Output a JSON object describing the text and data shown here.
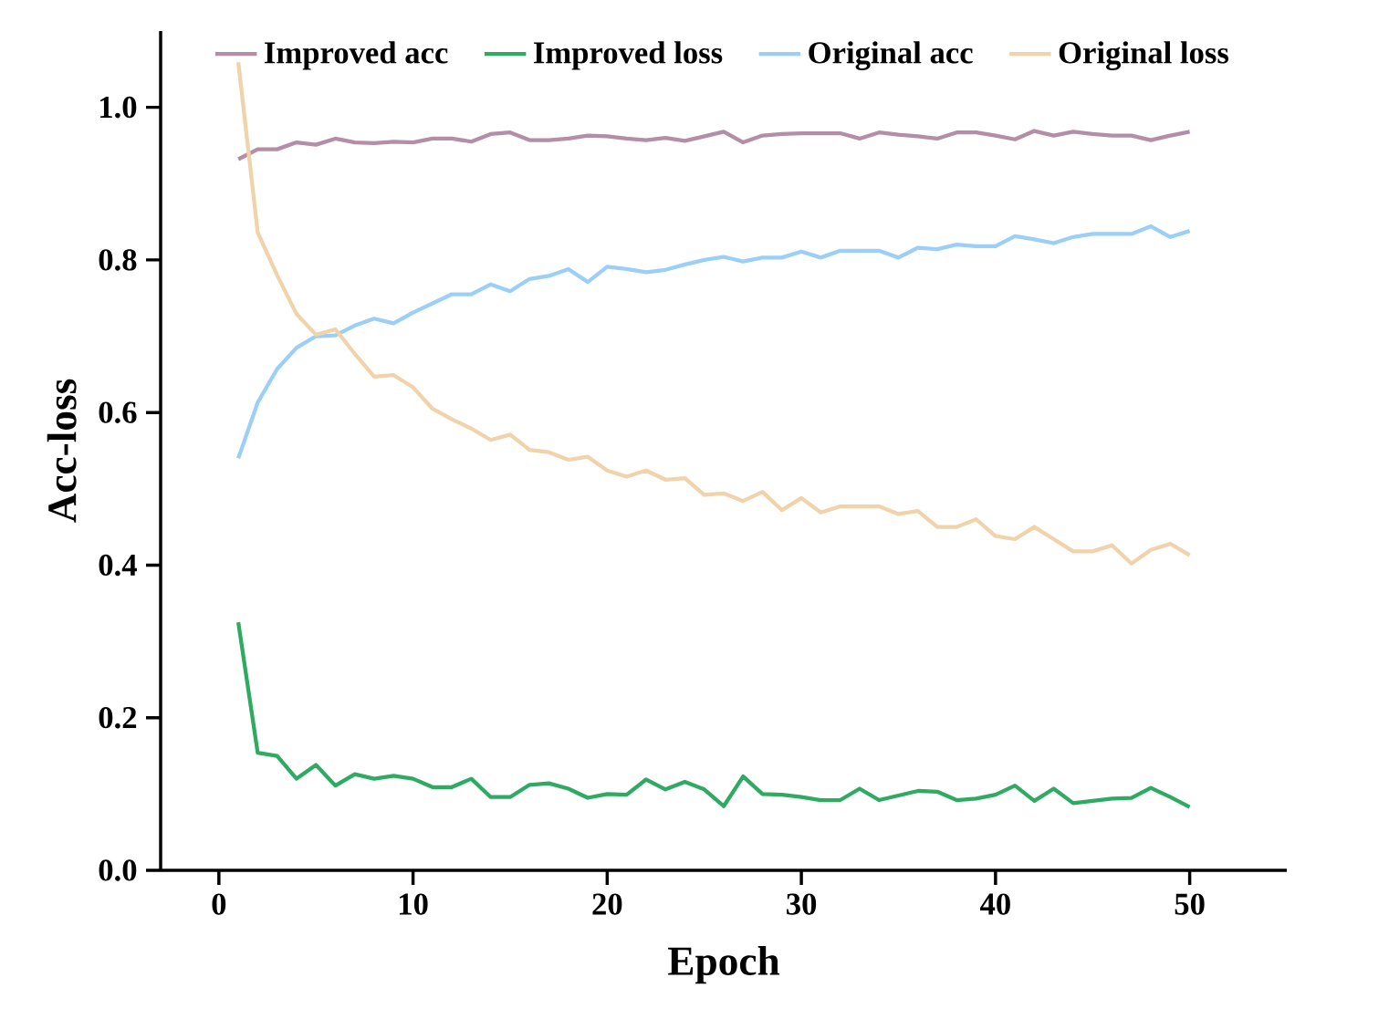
{
  "chart_data": {
    "type": "line",
    "xlabel": "Epoch",
    "ylabel": "Acc-loss",
    "legend": "top",
    "xlim": [
      -3,
      55
    ],
    "ylim": [
      0,
      1.1
    ],
    "xticks": [
      0,
      10,
      20,
      30,
      40,
      50
    ],
    "yticks": [
      {
        "value": 0,
        "label": "0.0"
      },
      {
        "value": 0.2,
        "label": "0.2"
      },
      {
        "value": 0.4,
        "label": "0.4"
      },
      {
        "value": 0.6,
        "label": "0.6"
      },
      {
        "value": 0.8,
        "label": "0.8"
      },
      {
        "value": 1.0,
        "label": "1.0"
      }
    ],
    "x": [
      1,
      2,
      3,
      4,
      5,
      6,
      7,
      8,
      9,
      10,
      11,
      12,
      13,
      14,
      15,
      16,
      17,
      18,
      19,
      20,
      21,
      22,
      23,
      24,
      25,
      26,
      27,
      28,
      29,
      30,
      31,
      32,
      33,
      34,
      35,
      36,
      37,
      38,
      39,
      40,
      41,
      42,
      43,
      44,
      45,
      46,
      47,
      48,
      49,
      50
    ],
    "series": [
      {
        "name": "Improved acc",
        "color": "#b48ea6",
        "values": [
          0.932,
          0.945,
          0.945,
          0.954,
          0.951,
          0.959,
          0.954,
          0.953,
          0.955,
          0.954,
          0.959,
          0.959,
          0.955,
          0.965,
          0.967,
          0.957,
          0.957,
          0.959,
          0.963,
          0.962,
          0.959,
          0.957,
          0.96,
          0.956,
          0.962,
          0.968,
          0.954,
          0.963,
          0.965,
          0.966,
          0.966,
          0.966,
          0.959,
          0.967,
          0.964,
          0.962,
          0.959,
          0.967,
          0.967,
          0.963,
          0.958,
          0.969,
          0.963,
          0.968,
          0.965,
          0.963,
          0.963,
          0.957,
          0.963,
          0.968
        ]
      },
      {
        "name": "Improved loss",
        "color": "#2eaa63",
        "values": [
          0.325,
          0.154,
          0.15,
          0.12,
          0.138,
          0.111,
          0.126,
          0.12,
          0.124,
          0.12,
          0.109,
          0.109,
          0.12,
          0.096,
          0.096,
          0.112,
          0.114,
          0.107,
          0.095,
          0.1,
          0.099,
          0.119,
          0.106,
          0.116,
          0.106,
          0.084,
          0.123,
          0.1,
          0.099,
          0.096,
          0.092,
          0.092,
          0.107,
          0.092,
          0.098,
          0.104,
          0.103,
          0.092,
          0.094,
          0.099,
          0.111,
          0.091,
          0.107,
          0.088,
          0.091,
          0.094,
          0.095,
          0.108,
          0.096,
          0.083
        ]
      },
      {
        "name": "Original acc",
        "color": "#9ccff5",
        "values": [
          0.54,
          0.613,
          0.657,
          0.685,
          0.7,
          0.701,
          0.714,
          0.723,
          0.717,
          0.731,
          0.743,
          0.755,
          0.755,
          0.768,
          0.759,
          0.775,
          0.779,
          0.788,
          0.771,
          0.791,
          0.788,
          0.784,
          0.787,
          0.794,
          0.8,
          0.804,
          0.798,
          0.803,
          0.803,
          0.811,
          0.803,
          0.812,
          0.812,
          0.812,
          0.803,
          0.816,
          0.814,
          0.82,
          0.818,
          0.818,
          0.831,
          0.827,
          0.822,
          0.83,
          0.834,
          0.834,
          0.834,
          0.844,
          0.83,
          0.838
        ]
      },
      {
        "name": "Original loss",
        "color": "#f0d3ab",
        "values": [
          1.059,
          0.836,
          0.78,
          0.729,
          0.702,
          0.709,
          0.677,
          0.647,
          0.649,
          0.633,
          0.605,
          0.591,
          0.579,
          0.564,
          0.571,
          0.551,
          0.548,
          0.538,
          0.542,
          0.524,
          0.516,
          0.524,
          0.512,
          0.514,
          0.492,
          0.494,
          0.484,
          0.496,
          0.472,
          0.488,
          0.469,
          0.477,
          0.477,
          0.477,
          0.467,
          0.471,
          0.45,
          0.45,
          0.46,
          0.438,
          0.434,
          0.45,
          0.434,
          0.418,
          0.418,
          0.426,
          0.402,
          0.42,
          0.428,
          0.413
        ]
      }
    ]
  }
}
